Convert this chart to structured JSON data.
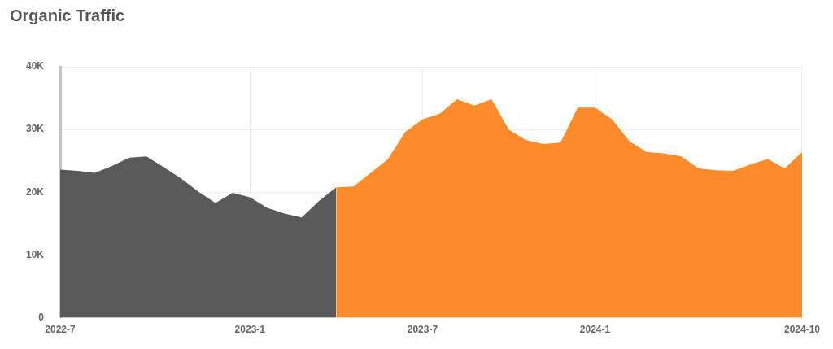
{
  "chart_data": {
    "type": "area",
    "title": "Organic Traffic",
    "categories": [
      "2022-7",
      null,
      null,
      null,
      null,
      null,
      null,
      null,
      null,
      null,
      null,
      "2023-1",
      null,
      null,
      null,
      null,
      null,
      null,
      null,
      null,
      null,
      "2023-7",
      null,
      null,
      null,
      null,
      null,
      null,
      null,
      null,
      null,
      "2024-1",
      null,
      null,
      null,
      null,
      null,
      null,
      null,
      null,
      null,
      null,
      null,
      "2024-10"
    ],
    "series": [
      {
        "color": "#5a5a5a",
        "values": [
          23600,
          23400,
          23100,
          24200,
          25500,
          25700,
          24000,
          22200,
          20100,
          18300,
          19900,
          19200,
          17500,
          16600,
          16000,
          18600,
          20800,
          null,
          null,
          null,
          null,
          null,
          null,
          null,
          null,
          null,
          null,
          null,
          null,
          null,
          null,
          null,
          null,
          null,
          null,
          null,
          null,
          null,
          null,
          null,
          null,
          null,
          null,
          null
        ]
      },
      {
        "color": "#fd8a2b",
        "values": [
          null,
          null,
          null,
          null,
          null,
          null,
          null,
          null,
          null,
          null,
          null,
          null,
          null,
          null,
          null,
          null,
          20800,
          20900,
          23100,
          25300,
          29600,
          31600,
          32500,
          34800,
          33800,
          34800,
          30000,
          28300,
          27700,
          27900,
          33500,
          33500,
          31600,
          28100,
          26400,
          26200,
          25700,
          23800,
          23500,
          23400,
          24400,
          25300,
          23800,
          26400
        ]
      }
    ],
    "ylim": [
      0,
      40000
    ],
    "yticks": [
      {
        "value": 0,
        "label": "0"
      },
      {
        "value": 10000,
        "label": "10K"
      },
      {
        "value": 20000,
        "label": "20K"
      },
      {
        "value": 30000,
        "label": "30K"
      },
      {
        "value": 40000,
        "label": "40K"
      }
    ],
    "grid": true
  }
}
